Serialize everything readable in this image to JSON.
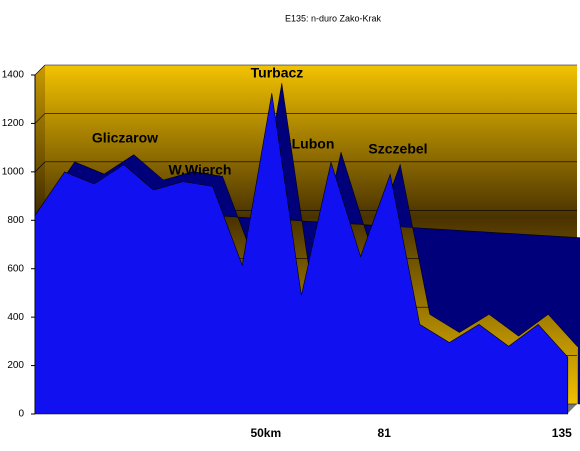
{
  "chart_data": {
    "type": "area3d",
    "title": "E135: n-duro Zako-Krak",
    "categories": [
      null,
      null,
      null,
      null,
      null,
      null,
      null,
      null,
      "50km",
      null,
      null,
      null,
      "81",
      null,
      null,
      null,
      null,
      null,
      "135"
    ],
    "values": [
      820,
      1000,
      950,
      1030,
      925,
      960,
      940,
      615,
      1325,
      490,
      1040,
      650,
      990,
      370,
      295,
      370,
      280,
      370,
      235
    ],
    "color": "#1010f0",
    "ylim": [
      0,
      1400
    ],
    "yticks": [
      0,
      200,
      400,
      600,
      800,
      1000,
      1200,
      1400
    ],
    "grid": true,
    "annotations": [
      "Turbacz",
      "Gliczarow",
      "W.Wierch",
      "Lubon",
      "Szczebel"
    ]
  }
}
